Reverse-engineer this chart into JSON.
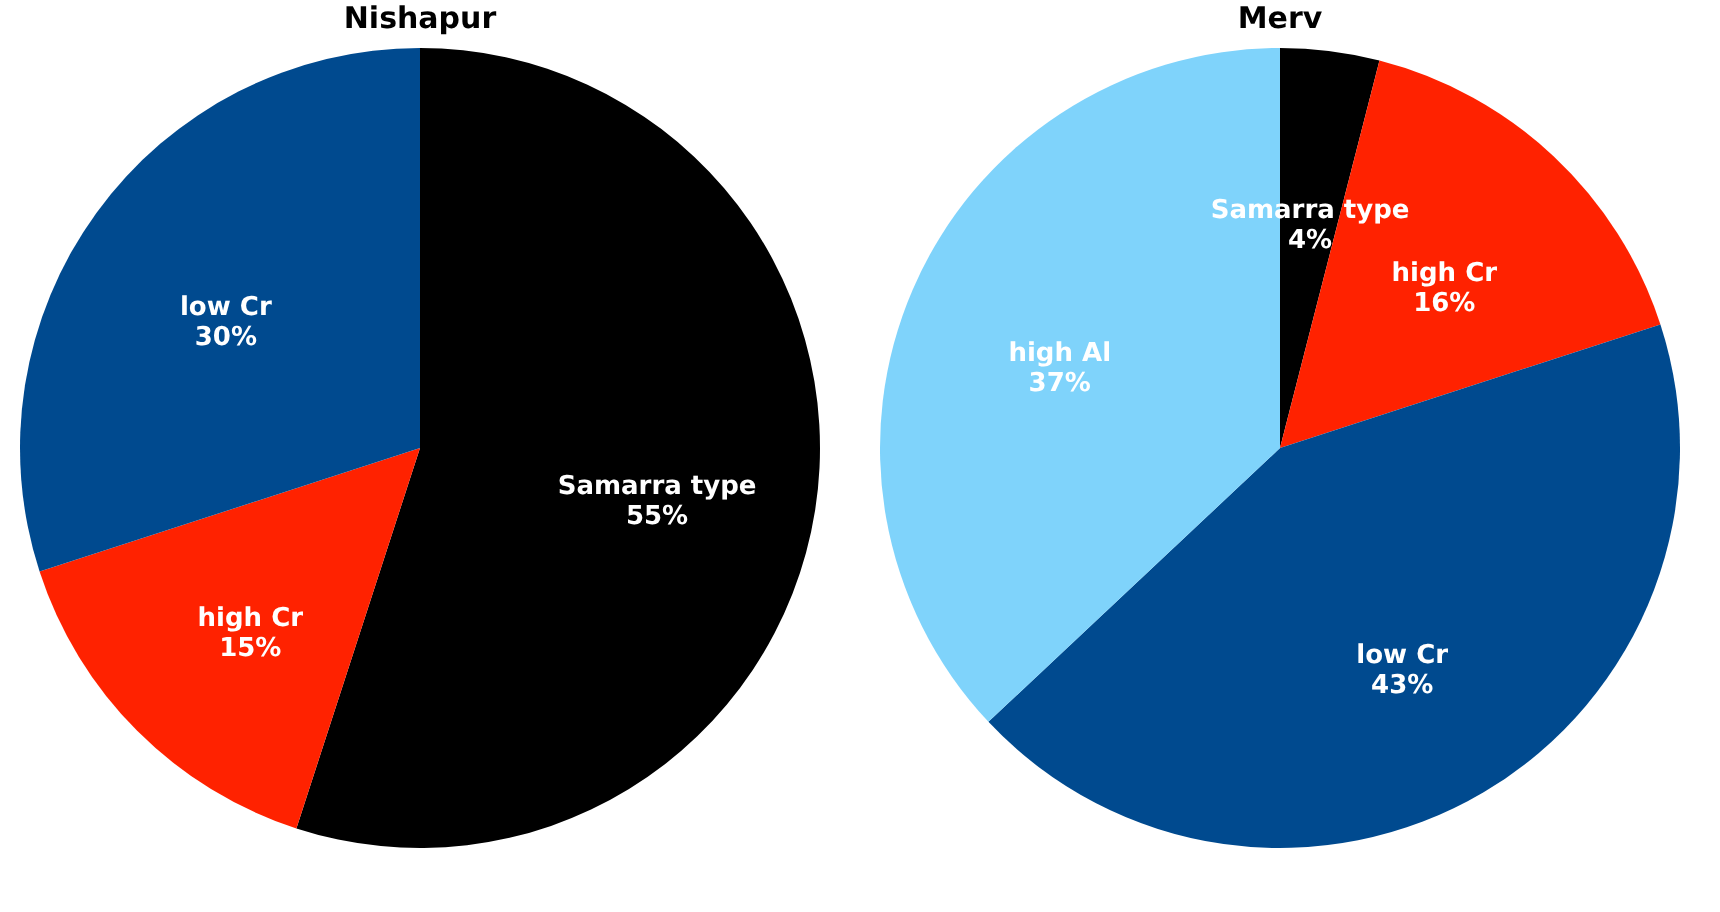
{
  "chart_data": [
    {
      "type": "pie",
      "title": "Nishapur",
      "categories": [
        "Samarra type",
        "high Cr",
        "low Cr"
      ],
      "values": [
        55,
        15,
        30
      ],
      "value_labels": [
        "55%",
        "15%",
        "30%"
      ],
      "colors": [
        "#000000",
        "#ff2200",
        "#004a8f"
      ],
      "legend": false
    },
    {
      "type": "pie",
      "title": "Merv",
      "categories": [
        "Samarra type",
        "high Cr",
        "low Cr",
        "high Al"
      ],
      "values": [
        4,
        16,
        43,
        37
      ],
      "value_labels": [
        "4%",
        "16%",
        "43%",
        "37%"
      ],
      "colors": [
        "#000000",
        "#ff2200",
        "#004a8f",
        "#7fd3fb"
      ],
      "legend": false
    }
  ]
}
